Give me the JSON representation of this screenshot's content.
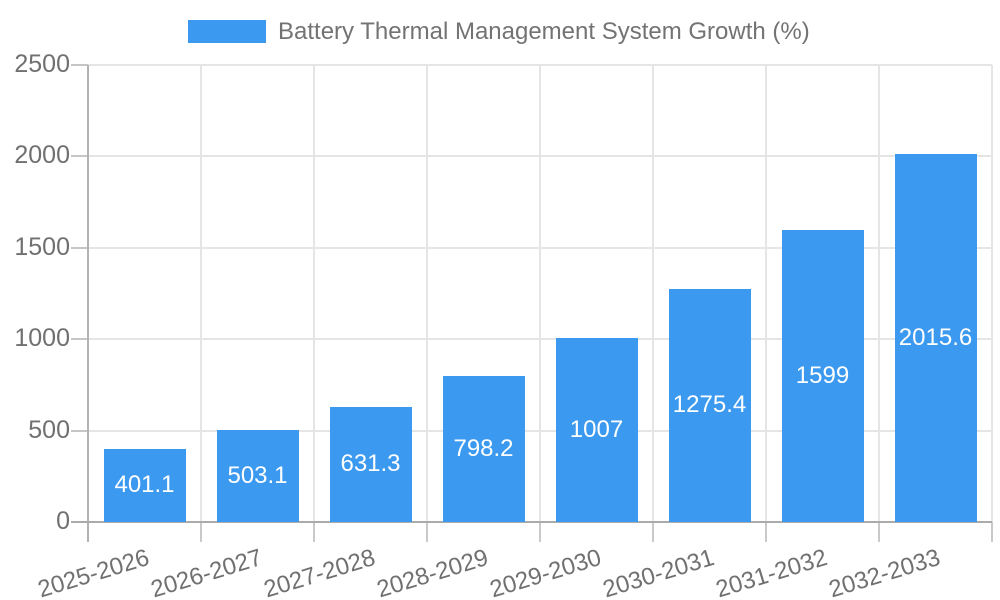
{
  "chart_data": {
    "type": "bar",
    "title": "Battery Thermal Management System Growth (%)",
    "legend": {
      "position": "top",
      "entries": [
        {
          "label": "Battery Thermal Management System Growth (%)",
          "color": "#3b99f0"
        }
      ]
    },
    "categories": [
      "2025-2026",
      "2026-2027",
      "2027-2028",
      "2028-2029",
      "2029-2030",
      "2030-2031",
      "2031-2032",
      "2032-2033"
    ],
    "values": [
      401.1,
      503.1,
      631.3,
      798.2,
      1007,
      1275.4,
      1599,
      2015.6
    ],
    "values_display": [
      "401.1",
      "503.1",
      "631.3",
      "798.2",
      "1007",
      "1275.4",
      "1599",
      "2015.6"
    ],
    "xlabel": "",
    "ylabel": "",
    "ylim": [
      0,
      2500
    ],
    "yticks": [
      0,
      500,
      1000,
      1500,
      2000,
      2500
    ],
    "yticks_display": [
      "0",
      "500",
      "1000",
      "1500",
      "2000",
      "2500"
    ],
    "grid": true,
    "bar_color": "#3b99f0",
    "value_label_color": "#ffffff"
  },
  "colors": {
    "background": "#ffffff",
    "bar": "#3b99f0",
    "grid": "#e5e5e5",
    "axis": "#b0b0b0",
    "axis_text": "#707070",
    "legend_text": "#737373",
    "value_label": "#ffffff"
  }
}
